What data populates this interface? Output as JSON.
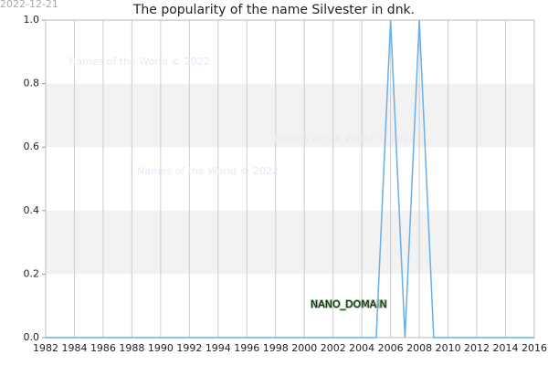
{
  "date_stamp": "2022-12-21",
  "chart_data": {
    "type": "line",
    "title": "The popularity of the name Silvester in dnk.",
    "x": [
      1982,
      1983,
      1984,
      1985,
      1986,
      1987,
      1988,
      1989,
      1990,
      1991,
      1992,
      1993,
      1994,
      1995,
      1996,
      1997,
      1998,
      1999,
      2000,
      2001,
      2002,
      2003,
      2004,
      2005,
      2006,
      2007,
      2008,
      2009,
      2010,
      2011,
      2012,
      2013,
      2014,
      2015,
      2016
    ],
    "series": [
      {
        "color": "#6aaee8",
        "values": [
          0,
          0,
          0,
          0,
          0,
          0,
          0,
          0,
          0,
          0,
          0,
          0,
          0,
          0,
          0,
          0,
          0,
          0,
          0,
          0,
          0,
          0,
          0,
          0,
          1,
          0,
          1,
          0,
          0,
          0,
          0,
          0,
          0,
          0,
          0
        ]
      }
    ],
    "xlim": [
      1982,
      2016
    ],
    "xticks": [
      1982,
      1984,
      1986,
      1988,
      1990,
      1992,
      1994,
      1996,
      1998,
      2000,
      2002,
      2004,
      2006,
      2008,
      2010,
      2012,
      2014,
      2016
    ],
    "ylim": [
      0,
      1
    ],
    "yticks": [
      {
        "value": 0,
        "label": "0.0"
      },
      0.2,
      0.4,
      0.6,
      0.8,
      {
        "value": 1,
        "label": "1.0"
      }
    ],
    "grid": true,
    "alternate_bands": true,
    "annotations": [
      "Names of the World © 2022",
      "Names of the World © 2022",
      "Names of the World © 2022",
      "NANO_DOMAIN"
    ]
  }
}
